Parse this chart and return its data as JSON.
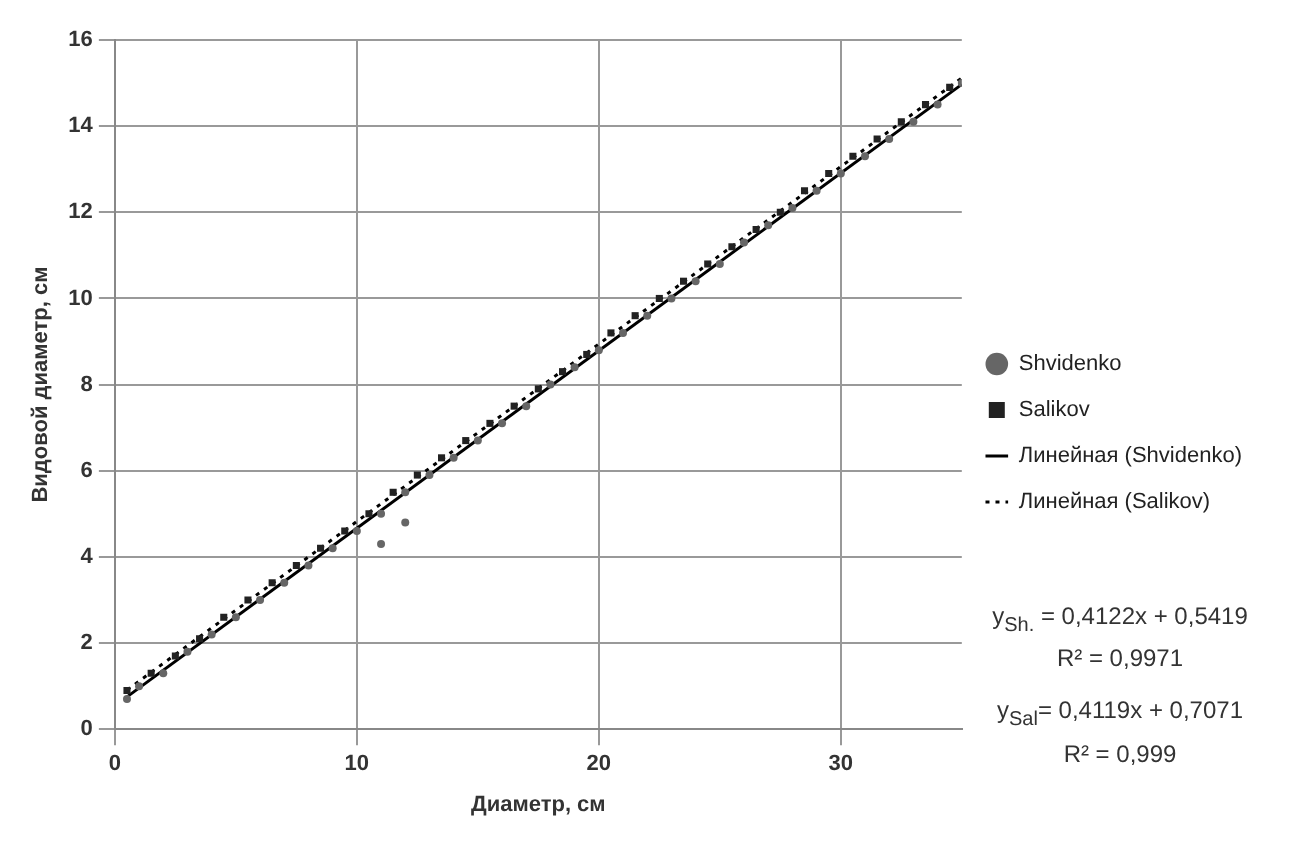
{
  "chart_data": {
    "type": "scatter",
    "xlabel": "Диаметр, см",
    "ylabel": "Видовой диаметр, см",
    "xlim": [
      0,
      35
    ],
    "xticks": [
      0,
      10,
      20,
      30
    ],
    "ylim": [
      0,
      16
    ],
    "yticks": [
      0,
      2,
      4,
      6,
      8,
      10,
      12,
      14,
      16
    ],
    "grid": true,
    "legend": "right",
    "series": [
      {
        "name": "Shvidenko",
        "type": "scatter",
        "marker": "circle",
        "color": "#666666",
        "x": [
          0.5,
          1,
          2,
          3,
          4,
          5,
          6,
          7,
          8,
          9,
          10,
          11,
          11,
          12,
          12,
          13,
          14,
          15,
          16,
          17,
          18,
          19,
          20,
          21,
          22,
          23,
          24,
          25,
          26,
          27,
          28,
          29,
          30,
          31,
          32,
          33,
          34,
          35
        ],
        "values": [
          0.7,
          1.0,
          1.3,
          1.8,
          2.2,
          2.6,
          3.0,
          3.4,
          3.8,
          4.2,
          4.6,
          5.0,
          4.3,
          5.5,
          4.8,
          5.9,
          6.3,
          6.7,
          7.1,
          7.5,
          8.0,
          8.4,
          8.8,
          9.2,
          9.6,
          10.0,
          10.4,
          10.8,
          11.3,
          11.7,
          12.1,
          12.5,
          12.9,
          13.3,
          13.7,
          14.1,
          14.5,
          15.0
        ]
      },
      {
        "name": "Salikov",
        "type": "scatter",
        "marker": "square",
        "color": "#222222",
        "x": [
          0.5,
          1.5,
          2.5,
          3.5,
          4.5,
          5.5,
          6.5,
          7.5,
          8.5,
          9.5,
          10.5,
          11.5,
          12.5,
          13.5,
          14.5,
          15.5,
          16.5,
          17.5,
          18.5,
          19.5,
          20.5,
          21.5,
          22.5,
          23.5,
          24.5,
          25.5,
          26.5,
          27.5,
          28.5,
          29.5,
          30.5,
          31.5,
          32.5,
          33.5,
          34.5
        ],
        "values": [
          0.9,
          1.3,
          1.7,
          2.1,
          2.6,
          3.0,
          3.4,
          3.8,
          4.2,
          4.6,
          5.0,
          5.5,
          5.9,
          6.3,
          6.7,
          7.1,
          7.5,
          7.9,
          8.3,
          8.7,
          9.2,
          9.6,
          10.0,
          10.4,
          10.8,
          11.2,
          11.6,
          12.0,
          12.5,
          12.9,
          13.3,
          13.7,
          14.1,
          14.5,
          14.9
        ]
      },
      {
        "name": "Линейная (Shvidenko)",
        "type": "line",
        "marker": "none",
        "line_style": "solid",
        "color": "#000000",
        "x": [
          0.5,
          35
        ],
        "values": [
          0.75,
          14.97
        ]
      },
      {
        "name": "Линейная (Salikov)",
        "type": "line",
        "marker": "none",
        "line_style": "dotted",
        "color": "#000000",
        "x": [
          0.5,
          35
        ],
        "values": [
          0.91,
          15.12
        ]
      }
    ],
    "annotations": [
      "y$_{Sh.}$ = 0,4122x + 0,5419",
      "R² = 0,9971",
      "y$_{Sal}$= 0,4119x + 0,7071",
      "R² = 0,999"
    ]
  }
}
